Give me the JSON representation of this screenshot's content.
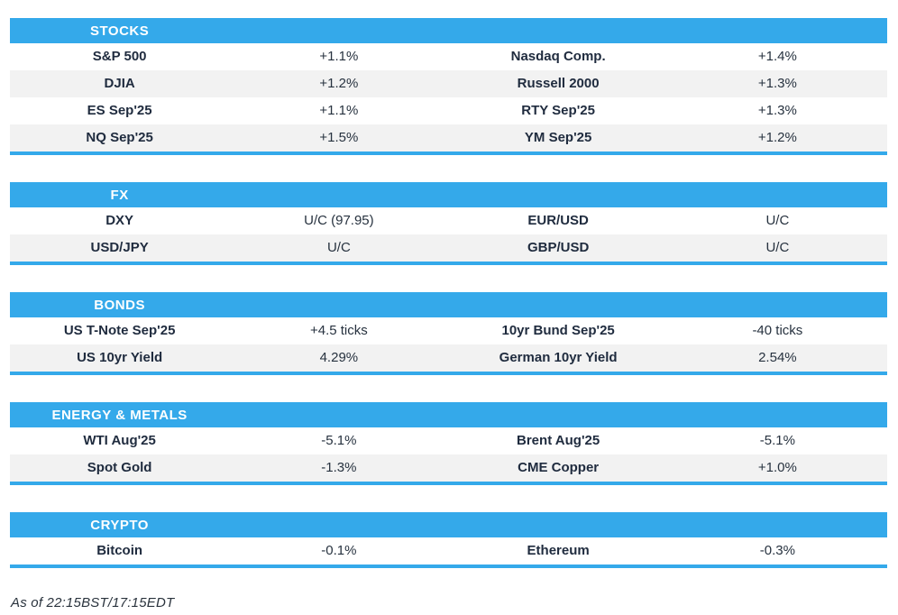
{
  "colors": {
    "accent": "#34A9EA",
    "stripe": "#F2F2F2",
    "text": "#1F2B3E"
  },
  "sections": [
    {
      "title": "STOCKS",
      "rows": [
        [
          "S&P 500",
          "+1.1%",
          "Nasdaq Comp.",
          "+1.4%"
        ],
        [
          "DJIA",
          "+1.2%",
          "Russell 2000",
          "+1.3%"
        ],
        [
          "ES Sep'25",
          "+1.1%",
          "RTY Sep'25",
          "+1.3%"
        ],
        [
          "NQ Sep'25",
          "+1.5%",
          "YM Sep'25",
          "+1.2%"
        ]
      ]
    },
    {
      "title": "FX",
      "rows": [
        [
          "DXY",
          "U/C (97.95)",
          "EUR/USD",
          "U/C"
        ],
        [
          "USD/JPY",
          "U/C",
          "GBP/USD",
          "U/C"
        ]
      ]
    },
    {
      "title": "BONDS",
      "rows": [
        [
          "US T-Note Sep'25",
          "+4.5 ticks",
          "10yr Bund Sep'25",
          "-40 ticks"
        ],
        [
          "US 10yr Yield",
          "4.29%",
          "German 10yr Yield",
          "2.54%"
        ]
      ]
    },
    {
      "title": "ENERGY & METALS",
      "rows": [
        [
          "WTI Aug'25",
          "-5.1%",
          "Brent Aug'25",
          "-5.1%"
        ],
        [
          "Spot Gold",
          "-1.3%",
          "CME Copper",
          "+1.0%"
        ]
      ]
    },
    {
      "title": "CRYPTO",
      "rows": [
        [
          "Bitcoin",
          "-0.1%",
          "Ethereum",
          "-0.3%"
        ]
      ]
    }
  ],
  "page": {
    "footer": "As of 22:15BST/17:15EDT"
  }
}
